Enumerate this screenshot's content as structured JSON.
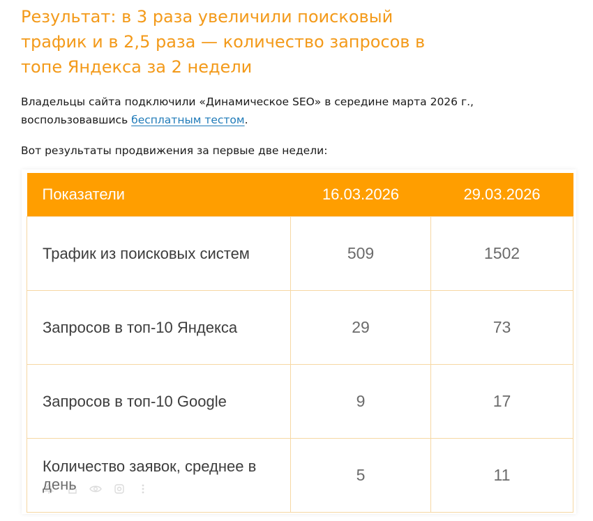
{
  "headline": "Результат: в 3 раза увеличили поисковый трафик и в 2,5 раза — количество запросов в топе Яндекса за 2 недели",
  "intro": {
    "before_link": "Владельцы сайта подключили «Динамическое SEO» в середине марта 2026 г., воспользовавшись ",
    "link_text": "бесплатным тестом",
    "after_link": "."
  },
  "results_intro": "Вот результаты продвижения за первые две недели:",
  "table": {
    "headers": [
      "Показатели",
      "16.03.2026",
      "29.03.2026"
    ],
    "rows": [
      {
        "label": "Трафик из поисковых систем",
        "before": "509",
        "after": "1502"
      },
      {
        "label": "Запросов в топ-10 Яндекса",
        "before": "29",
        "after": "73"
      },
      {
        "label": "Запросов в топ-10 Google",
        "before": "9",
        "after": "17"
      },
      {
        "label": "Количество заявок, среднее в день",
        "before": "5",
        "after": "11"
      }
    ]
  },
  "overlay_toolbar": {
    "icons": [
      "pin-icon",
      "share-icon",
      "eye-icon",
      "lens-icon",
      "more-vertical-icon"
    ]
  },
  "colors": {
    "accent": "#ff9e00",
    "headline": "#f39a1a",
    "link": "#1e7ab8",
    "cell_border": "#f6d7a3"
  }
}
